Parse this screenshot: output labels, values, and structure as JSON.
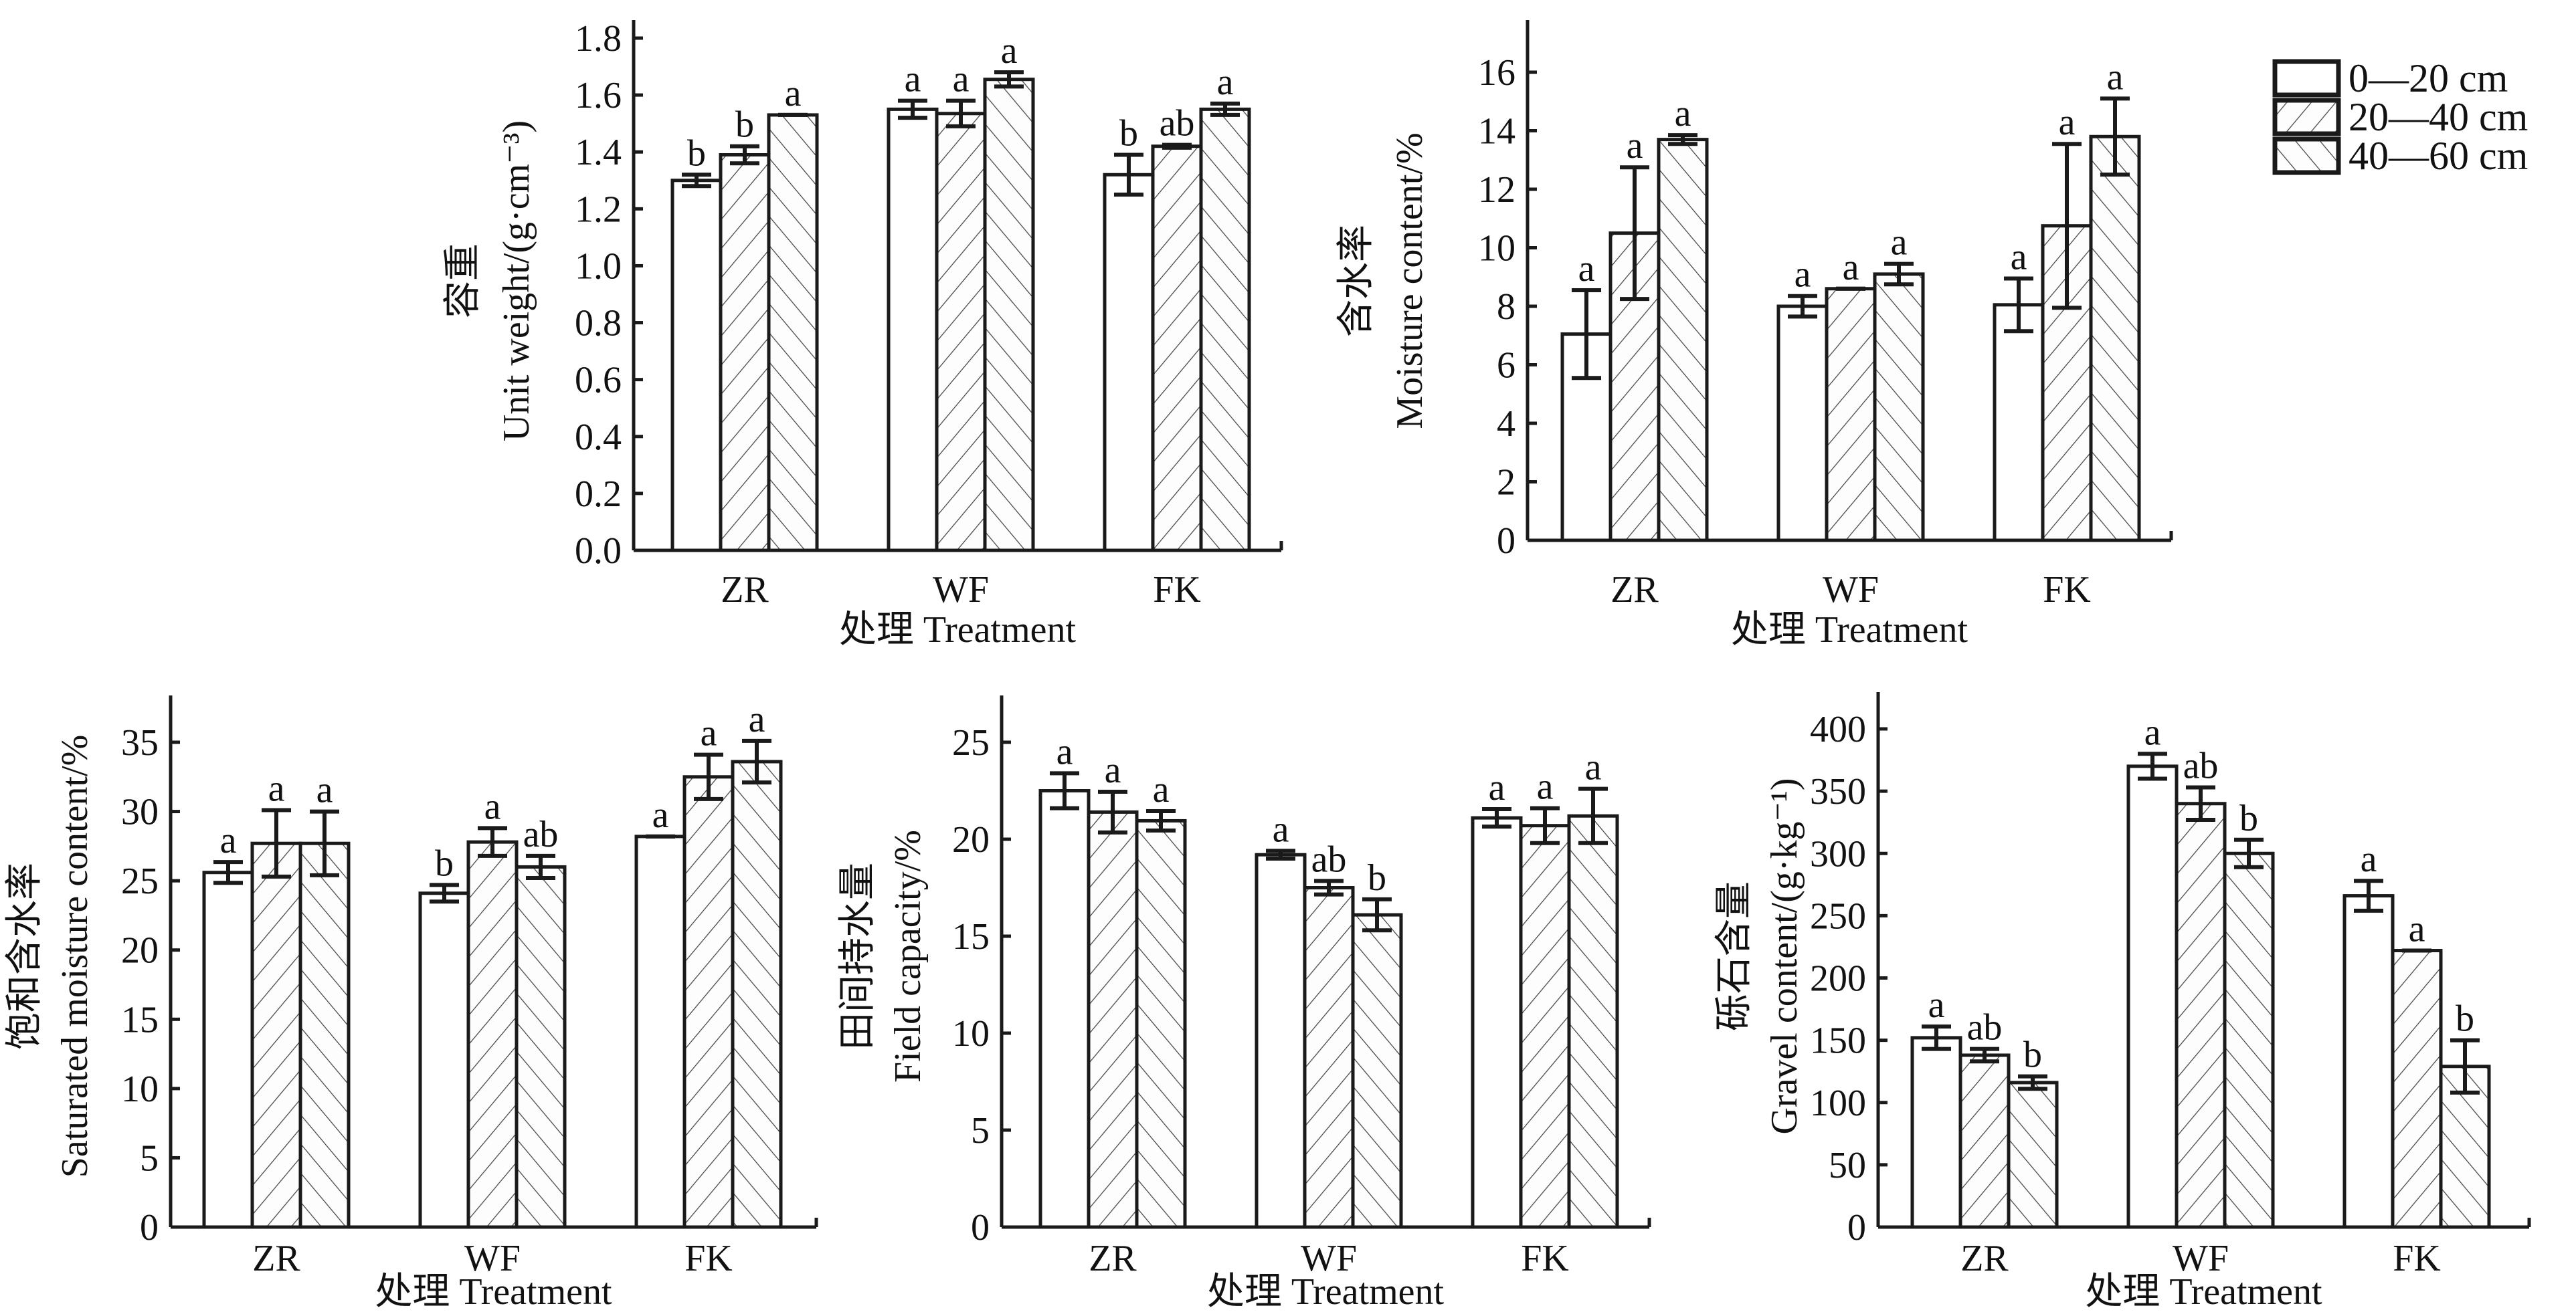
{
  "legend": {
    "items": [
      {
        "label": "0—20 cm",
        "pattern": "none"
      },
      {
        "label": "20—40 cm",
        "pattern": "forward-hatch"
      },
      {
        "label": "40—60 cm",
        "pattern": "back-hatch"
      }
    ]
  },
  "chart_data": [
    {
      "type": "bar",
      "title": "",
      "xlabel": "处理 Treatment",
      "ylabel_cn": "容重",
      "ylabel": "Unit weight/(g·cm⁻³)",
      "categories": [
        "ZR",
        "WF",
        "FK"
      ],
      "ylim": [
        0,
        1.8
      ],
      "yticks": [
        "0.0",
        "0.2",
        "0.4",
        "0.6",
        "0.8",
        "1.0",
        "1.2",
        "1.4",
        "1.6",
        "1.8"
      ],
      "series": [
        {
          "name": "0—20 cm",
          "values": [
            1.3,
            1.55,
            1.32
          ],
          "errors": [
            0.02,
            0.03,
            0.07
          ],
          "labels": [
            "b",
            "a",
            "b"
          ]
        },
        {
          "name": "20—40 cm",
          "values": [
            1.39,
            1.535,
            1.42
          ],
          "errors": [
            0.03,
            0.045,
            0.005
          ],
          "labels": [
            "b",
            "a",
            "ab"
          ]
        },
        {
          "name": "40—60 cm",
          "values": [
            1.53,
            1.655,
            1.55
          ],
          "errors": [
            0.0,
            0.025,
            0.02
          ],
          "labels": [
            "a",
            "a",
            "a"
          ]
        }
      ]
    },
    {
      "type": "bar",
      "title": "",
      "xlabel": "处理 Treatment",
      "ylabel_cn": "含水率",
      "ylabel": "Moisture content/%",
      "categories": [
        "ZR",
        "WF",
        "FK"
      ],
      "ylim": [
        0,
        17
      ],
      "yticks": [
        "0",
        "2",
        "4",
        "6",
        "8",
        "10",
        "12",
        "14",
        "16"
      ],
      "series": [
        {
          "name": "0—20 cm",
          "values": [
            7.05,
            8.0,
            8.05
          ],
          "errors": [
            1.5,
            0.35,
            0.9
          ],
          "labels": [
            "a",
            "a",
            "a"
          ]
        },
        {
          "name": "20—40 cm",
          "values": [
            10.5,
            8.6,
            10.75
          ],
          "errors": [
            2.25,
            0.0,
            2.8
          ],
          "labels": [
            "a",
            "a",
            "a"
          ]
        },
        {
          "name": "40—60 cm",
          "values": [
            13.7,
            9.1,
            13.8
          ],
          "errors": [
            0.15,
            0.35,
            1.3
          ],
          "labels": [
            "a",
            "a",
            "a"
          ]
        }
      ]
    },
    {
      "type": "bar",
      "title": "",
      "xlabel": "处理 Treatment",
      "ylabel_cn": "饱和含水率",
      "ylabel": "Saturated moisture content/%",
      "categories": [
        "ZR",
        "WF",
        "FK"
      ],
      "ylim": [
        0,
        37.5
      ],
      "yticks": [
        "0",
        "5",
        "10",
        "15",
        "20",
        "25",
        "30",
        "35"
      ],
      "series": [
        {
          "name": "0—20 cm",
          "values": [
            25.6,
            24.1,
            28.2
          ],
          "errors": [
            0.75,
            0.6,
            0.0
          ],
          "labels": [
            "a",
            "b",
            "a"
          ]
        },
        {
          "name": "20—40 cm",
          "values": [
            27.7,
            27.8,
            32.5
          ],
          "errors": [
            2.4,
            1.0,
            1.6
          ],
          "labels": [
            "a",
            "a",
            "a"
          ]
        },
        {
          "name": "40—60 cm",
          "values": [
            27.7,
            26.0,
            33.6
          ],
          "errors": [
            2.3,
            0.8,
            1.5
          ],
          "labels": [
            "a",
            "ab",
            "a"
          ]
        }
      ]
    },
    {
      "type": "bar",
      "title": "",
      "xlabel": "处理 Treatment",
      "ylabel_cn": "田间持水量",
      "ylabel": "Field capacity/%",
      "categories": [
        "ZR",
        "WF",
        "FK"
      ],
      "ylim": [
        0,
        27.5
      ],
      "yticks": [
        "0",
        "5",
        "10",
        "15",
        "20",
        "25"
      ],
      "series": [
        {
          "name": "0—20 cm",
          "values": [
            22.5,
            19.2,
            21.1
          ],
          "errors": [
            0.9,
            0.2,
            0.45
          ],
          "labels": [
            "a",
            "a",
            "a"
          ]
        },
        {
          "name": "20—40 cm",
          "values": [
            21.4,
            17.5,
            20.7
          ],
          "errors": [
            1.05,
            0.35,
            0.9
          ],
          "labels": [
            "a",
            "ab",
            "a"
          ]
        },
        {
          "name": "40—60 cm",
          "values": [
            20.95,
            16.1,
            21.2
          ],
          "errors": [
            0.5,
            0.8,
            1.4
          ],
          "labels": [
            "a",
            "b",
            "a"
          ]
        }
      ]
    },
    {
      "type": "bar",
      "title": "",
      "xlabel": "处理 Treatment",
      "ylabel_cn": "砾石含量",
      "ylabel": "Gravel content/(g·kg⁻¹)",
      "categories": [
        "ZR",
        "WF",
        "FK"
      ],
      "ylim": [
        0,
        425
      ],
      "yticks": [
        "0",
        "50",
        "100",
        "150",
        "200",
        "250",
        "300",
        "350",
        "400"
      ],
      "series": [
        {
          "name": "0—20 cm",
          "values": [
            152,
            370,
            266
          ],
          "errors": [
            9,
            10,
            12
          ],
          "labels": [
            "a",
            "a",
            "a"
          ]
        },
        {
          "name": "20—40 cm",
          "values": [
            138,
            340,
            222
          ],
          "errors": [
            5,
            13,
            0
          ],
          "labels": [
            "ab",
            "ab",
            "a"
          ]
        },
        {
          "name": "40—60 cm",
          "values": [
            116,
            300,
            129
          ],
          "errors": [
            5,
            11,
            21
          ],
          "labels": [
            "b",
            "b",
            "b"
          ]
        }
      ]
    }
  ]
}
